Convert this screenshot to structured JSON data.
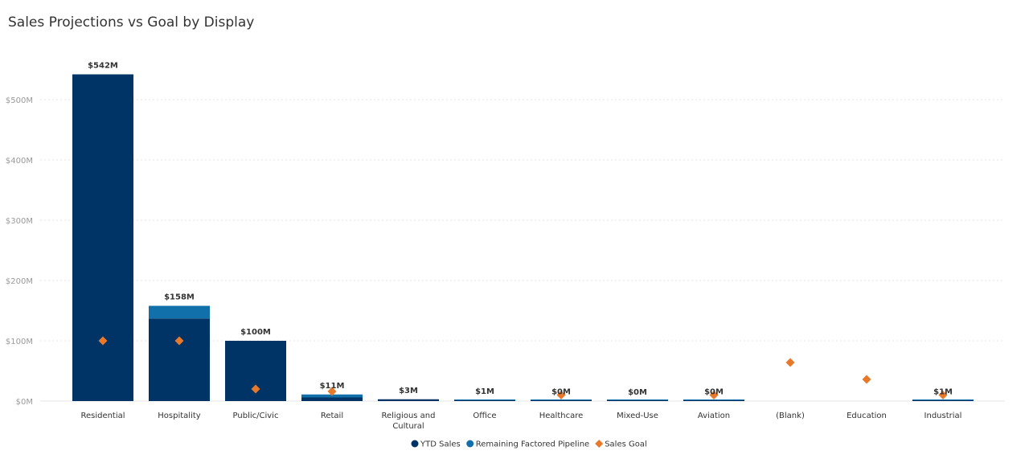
{
  "page": {
    "title": "Sales Projections vs Goal by Display"
  },
  "chart_data": {
    "type": "bar",
    "title": "Sales Projections vs Goal by Display",
    "xlabel": "",
    "ylabel": "",
    "ylim": [
      0,
      550
    ],
    "yticks": [
      0,
      100,
      200,
      300,
      400,
      500
    ],
    "ytick_labels": [
      "$0M",
      "$100M",
      "$200M",
      "$300M",
      "$400M",
      "$500M"
    ],
    "grid": true,
    "legend": "bottom-center",
    "categories": [
      [
        "Residential"
      ],
      [
        "Hospitality"
      ],
      [
        "Public/Civic"
      ],
      [
        "Retail"
      ],
      [
        "Religious and",
        "Cultural"
      ],
      [
        "Office"
      ],
      [
        "Healthcare"
      ],
      [
        "Mixed-Use"
      ],
      [
        "Aviation"
      ],
      [
        "(Blank)"
      ],
      [
        "Education"
      ],
      [
        "Industrial"
      ]
    ],
    "series": [
      {
        "name": "YTD Sales",
        "kind": "stacked-bar",
        "color": "#003366",
        "values": [
          542,
          137,
          100,
          6,
          3,
          1,
          0.3,
          0.2,
          0.3,
          0,
          0,
          0.3
        ]
      },
      {
        "name": "Remaining Factored Pipeline",
        "kind": "stacked-bar",
        "color": "#1170aa",
        "values": [
          0,
          21,
          0,
          5,
          0,
          0.2,
          0.2,
          0.1,
          0.2,
          0,
          0,
          0.4
        ]
      },
      {
        "name": "Sales Goal",
        "kind": "marker",
        "color": "#e8782a",
        "values": [
          100,
          100,
          20,
          16,
          null,
          null,
          10,
          null,
          10,
          64,
          36,
          10
        ]
      }
    ],
    "data_labels": [
      "$542M",
      "$158M",
      "$100M",
      "$11M",
      "$3M",
      "$1M",
      "$0M",
      "$0M",
      "$0M",
      "",
      "",
      "$1M"
    ]
  }
}
